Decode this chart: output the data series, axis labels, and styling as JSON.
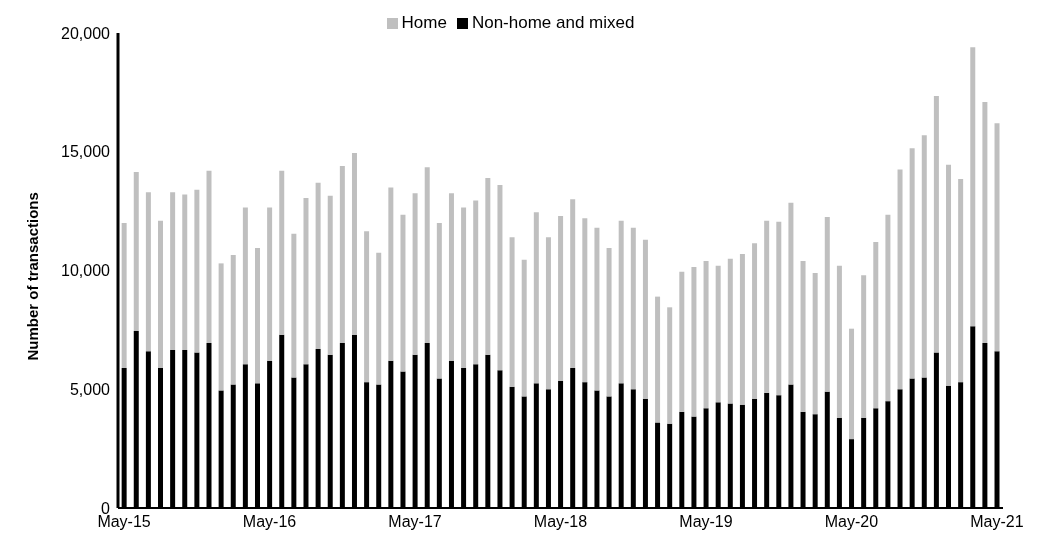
{
  "chart_data": {
    "type": "bar",
    "stacked": true,
    "ylabel": "Number of transactions",
    "categories": [
      "May-15",
      null,
      null,
      null,
      null,
      null,
      null,
      null,
      null,
      null,
      null,
      null,
      "May-16",
      null,
      null,
      null,
      null,
      null,
      null,
      null,
      null,
      null,
      null,
      null,
      "May-17",
      null,
      null,
      null,
      null,
      null,
      null,
      null,
      null,
      null,
      null,
      null,
      "May-18",
      null,
      null,
      null,
      null,
      null,
      null,
      null,
      null,
      null,
      null,
      null,
      "May-19",
      null,
      null,
      null,
      null,
      null,
      null,
      null,
      null,
      null,
      null,
      null,
      "May-20",
      null,
      null,
      null,
      null,
      null,
      null,
      null,
      null,
      null,
      null,
      null,
      "May-21"
    ],
    "series": [
      {
        "name": "Non-home and mixed",
        "color": "#000000",
        "values": [
          5900,
          7450,
          6600,
          5900,
          6650,
          6650,
          6550,
          6950,
          4950,
          5200,
          6050,
          5250,
          6200,
          7300,
          5500,
          6050,
          6700,
          6450,
          6950,
          7300,
          5300,
          5200,
          6200,
          5750,
          6450,
          6950,
          5450,
          6200,
          5900,
          6050,
          6450,
          5800,
          5100,
          4700,
          5250,
          5000,
          5350,
          5900,
          5300,
          4950,
          4700,
          5250,
          5000,
          4600,
          3600,
          3550,
          4050,
          3850,
          4200,
          4450,
          4400,
          4350,
          4600,
          4850,
          4750,
          5200,
          4050,
          3950,
          4900,
          3800,
          2900,
          3800,
          4200,
          4500,
          5000,
          5450,
          5500,
          6550,
          5150,
          5300,
          7650,
          6950,
          6600
        ]
      },
      {
        "name": "Home",
        "color": "#bfbfbf",
        "values": [
          6100,
          6700,
          6700,
          6200,
          6650,
          6550,
          6850,
          7250,
          5350,
          5450,
          6600,
          5700,
          6450,
          6900,
          6050,
          7000,
          7000,
          6700,
          7450,
          7650,
          6350,
          5550,
          7300,
          6600,
          6800,
          7400,
          6550,
          7050,
          6750,
          6900,
          7450,
          7800,
          6300,
          5750,
          7200,
          6400,
          6950,
          7100,
          6900,
          6850,
          6250,
          6850,
          6800,
          6700,
          5300,
          4900,
          5900,
          6300,
          6200,
          5750,
          6100,
          6350,
          6550,
          7250,
          7300,
          7650,
          6350,
          5950,
          7350,
          6400,
          4650,
          6000,
          7000,
          7850,
          9250,
          9700,
          10200,
          10800,
          9300,
          8550,
          11750,
          10150,
          9600
        ]
      }
    ],
    "ylim": [
      0,
      20000
    ],
    "yticks": [
      {
        "value": 0,
        "label": "0"
      },
      {
        "value": 5000,
        "label": "5,000"
      },
      {
        "value": 10000,
        "label": "10,000"
      },
      {
        "value": 15000,
        "label": "15,000"
      },
      {
        "value": 20000,
        "label": "20,000"
      }
    ],
    "grid": false,
    "legend": "top"
  }
}
